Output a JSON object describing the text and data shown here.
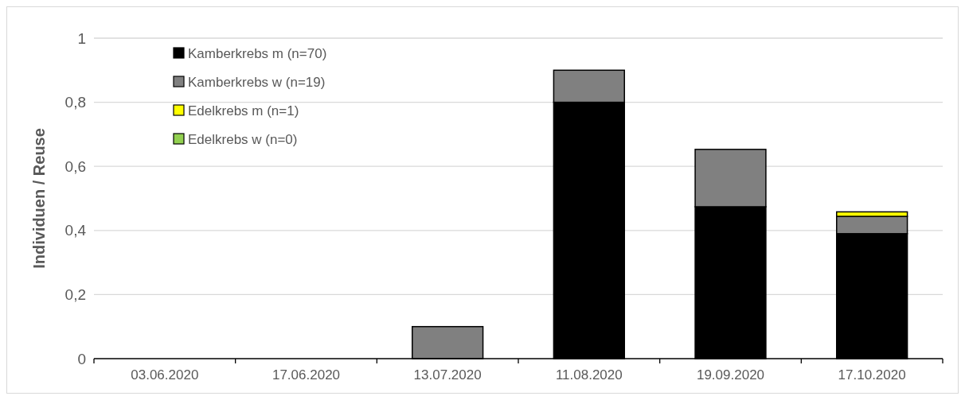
{
  "chart_data": {
    "type": "bar",
    "stacked": true,
    "ylabel": "Individuen / Reuse",
    "categories": [
      "03.06.2020",
      "17.06.2020",
      "13.07.2020",
      "11.08.2020",
      "19.09.2020",
      "17.10.2020"
    ],
    "series": [
      {
        "name": "Kamberkrebs m (n=70)",
        "color": "#000000",
        "values": [
          0,
          0,
          0,
          0.8,
          0.474,
          0.39
        ]
      },
      {
        "name": "Kamberkrebs w (n=19)",
        "color": "#808080",
        "values": [
          0,
          0,
          0.1,
          0.1,
          0.179,
          0.054
        ]
      },
      {
        "name": "Edelkrebs m (n=1)",
        "color": "#ffff00",
        "values": [
          0,
          0,
          0,
          0,
          0,
          0.014
        ]
      },
      {
        "name": "Edelkrebs w (n=0)",
        "color": "#92d050",
        "values": [
          0,
          0,
          0,
          0,
          0,
          0
        ]
      }
    ],
    "ylim": [
      0,
      1
    ],
    "yticks": [
      0,
      {
        "value": 0.2,
        "label": "0,2"
      },
      {
        "value": 0.4,
        "label": "0,4"
      },
      {
        "value": 0.6,
        "label": "0,6"
      },
      {
        "value": 0.8,
        "label": "0,8"
      },
      1
    ],
    "grid": "y",
    "legend": "top left"
  }
}
